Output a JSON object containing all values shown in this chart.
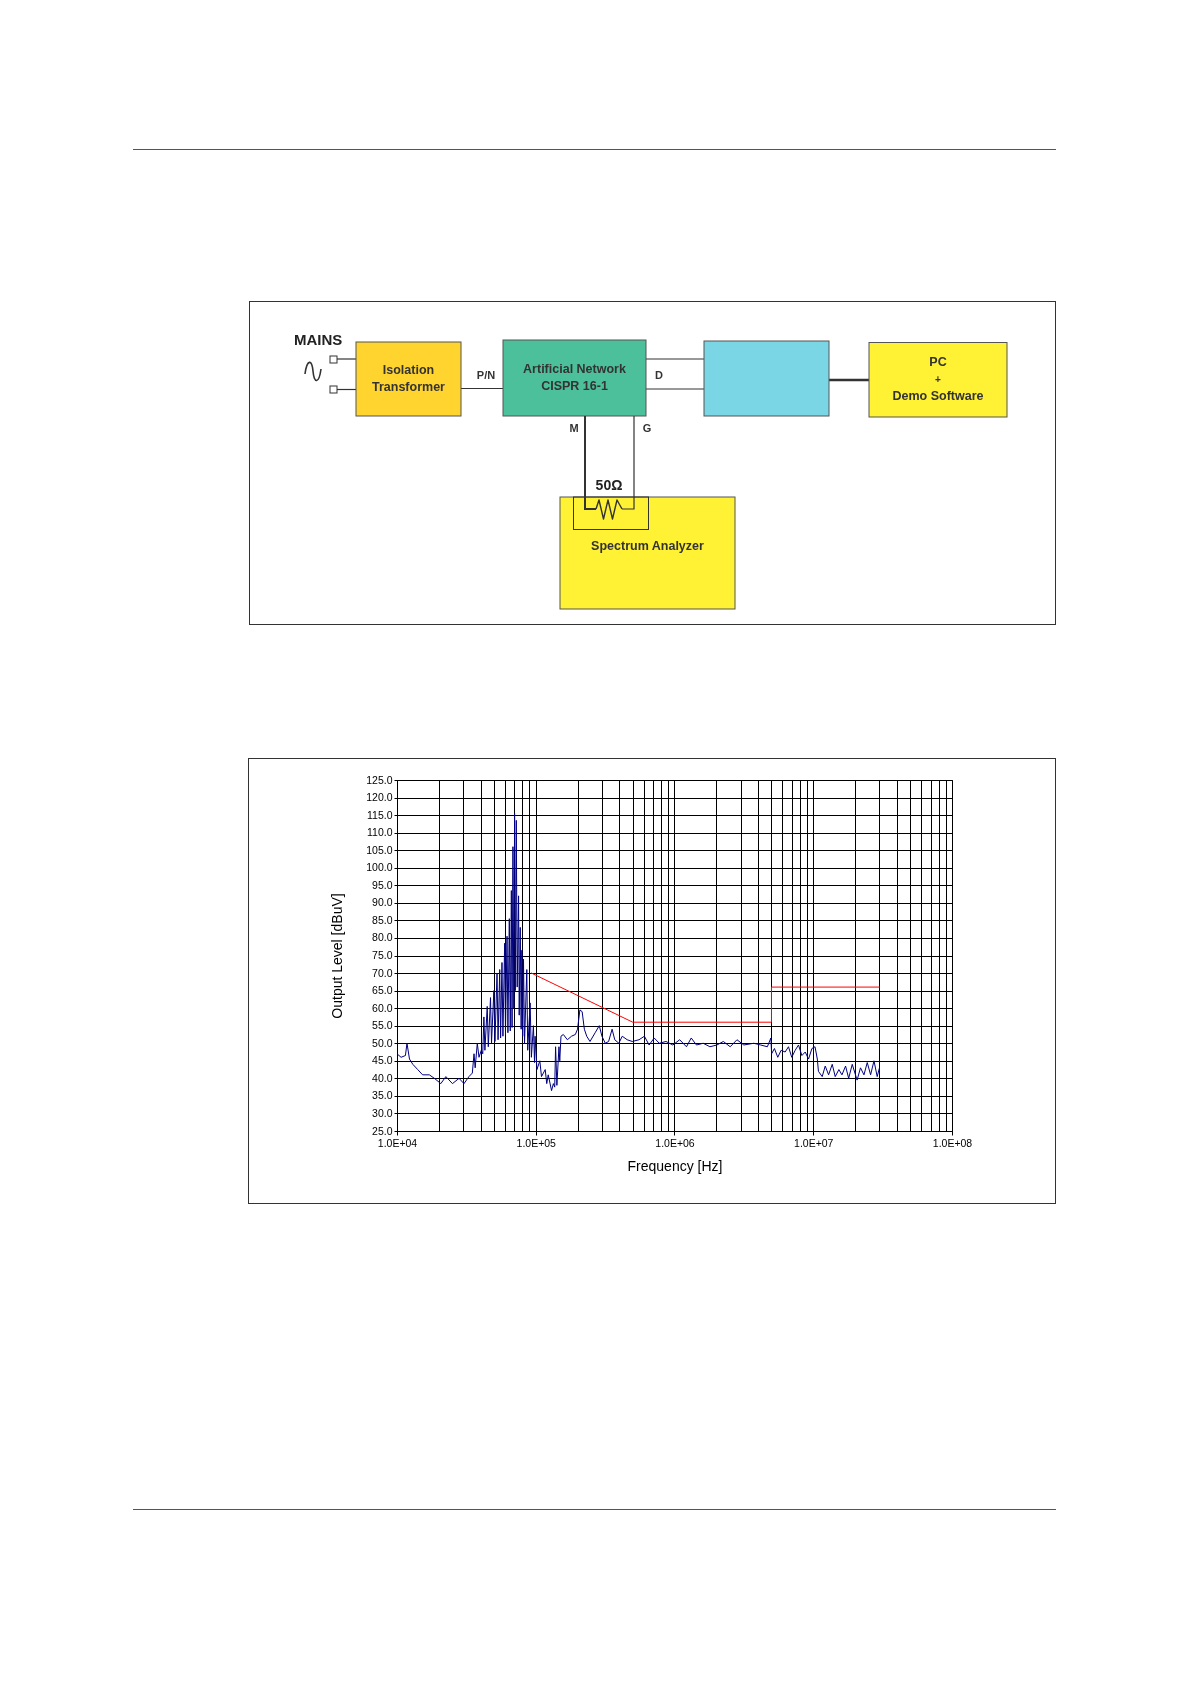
{
  "chart_data": [
    {
      "type": "other",
      "annotations": [
        "MAINS",
        "Isolation Transformer",
        "P/N",
        "Artificial Network CISPR 16-1",
        "D",
        "M",
        "G",
        "50Ω",
        "Spectrum Analyzer",
        "PC",
        "+",
        "Demo Software"
      ]
    },
    {
      "type": "line",
      "xlabel": "Frequency [Hz]",
      "ylabel": "Output Level [dBuV]",
      "log": "x",
      "xlim": [
        10000,
        100000000
      ],
      "xticks": [
        {
          "value": 10000,
          "label": "1.0E+04"
        },
        {
          "value": 20000,
          "label": null
        },
        {
          "value": 30000,
          "label": null
        },
        {
          "value": 40000,
          "label": null
        },
        {
          "value": 50000,
          "label": null
        },
        {
          "value": 60000,
          "label": null
        },
        {
          "value": 70000,
          "label": null
        },
        {
          "value": 80000,
          "label": null
        },
        {
          "value": 90000,
          "label": null
        },
        {
          "value": 100000,
          "label": "1.0E+05"
        },
        {
          "value": 200000,
          "label": null
        },
        {
          "value": 300000,
          "label": null
        },
        {
          "value": 400000,
          "label": null
        },
        {
          "value": 500000,
          "label": null
        },
        {
          "value": 600000,
          "label": null
        },
        {
          "value": 700000,
          "label": null
        },
        {
          "value": 800000,
          "label": null
        },
        {
          "value": 900000,
          "label": null
        },
        {
          "value": 1000000,
          "label": "1.0E+06"
        },
        {
          "value": 2000000,
          "label": null
        },
        {
          "value": 3000000,
          "label": null
        },
        {
          "value": 4000000,
          "label": null
        },
        {
          "value": 5000000,
          "label": null
        },
        {
          "value": 6000000,
          "label": null
        },
        {
          "value": 7000000,
          "label": null
        },
        {
          "value": 8000000,
          "label": null
        },
        {
          "value": 9000000,
          "label": null
        },
        {
          "value": 10000000,
          "label": "1.0E+07"
        },
        {
          "value": 20000000,
          "label": null
        },
        {
          "value": 30000000,
          "label": null
        },
        {
          "value": 40000000,
          "label": null
        },
        {
          "value": 50000000,
          "label": null
        },
        {
          "value": 60000000,
          "label": null
        },
        {
          "value": 70000000,
          "label": null
        },
        {
          "value": 80000000,
          "label": null
        },
        {
          "value": 90000000,
          "label": null
        },
        {
          "value": 100000000,
          "label": "1.0E+08"
        }
      ],
      "ylim": [
        25,
        125
      ],
      "yticks": [
        {
          "value": 25,
          "label": "25.0"
        },
        {
          "value": 30,
          "label": "30.0"
        },
        {
          "value": 35,
          "label": "35.0"
        },
        {
          "value": 40,
          "label": "40.0"
        },
        {
          "value": 45,
          "label": "45.0"
        },
        {
          "value": 50,
          "label": "50.0"
        },
        {
          "value": 55,
          "label": "55.0"
        },
        {
          "value": 60,
          "label": "60.0"
        },
        {
          "value": 65,
          "label": "65.0"
        },
        {
          "value": 70,
          "label": "70.0"
        },
        {
          "value": 75,
          "label": "75.0"
        },
        {
          "value": 80,
          "label": "80.0"
        },
        {
          "value": 85,
          "label": "85.0"
        },
        {
          "value": 90,
          "label": "90.0"
        },
        {
          "value": 95,
          "label": "95.0"
        },
        {
          "value": 100,
          "label": "100.0"
        },
        {
          "value": 105,
          "label": "105.0"
        },
        {
          "value": 110,
          "label": "110.0"
        },
        {
          "value": 115,
          "label": "115.0"
        },
        {
          "value": 120,
          "label": "120.0"
        },
        {
          "value": 125,
          "label": "125.0"
        }
      ],
      "grid": true,
      "series": [
        {
          "color": "#000080",
          "x": [
            10000,
            10700,
            11500,
            11800,
            12300,
            13000,
            14100,
            15300,
            17100,
            18600,
            20700,
            22500,
            25100,
            28000,
            30400,
            33000,
            34900,
            35900,
            36600,
            37900,
            39000,
            40500,
            41500,
            42300,
            43000,
            44700,
            45500,
            47200,
            48000,
            49900,
            50800,
            52600,
            53500,
            55000,
            55800,
            57100,
            58000,
            59700,
            60500,
            62100,
            63000,
            64500,
            65500,
            66700,
            67500,
            68500,
            69500,
            70400,
            71200,
            72400,
            73500,
            75200,
            76000,
            77300,
            78500,
            79400,
            80500,
            81600,
            83000,
            86200,
            87500,
            91100,
            93000,
            96200,
            98000,
            98900,
            102000,
            107000,
            110000,
            117000,
            120000,
            123000,
            130000,
            134000,
            137000,
            139000,
            142000,
            147000,
            149000,
            152000,
            158000,
            169000,
            181000,
            193000,
            200000,
            208000,
            216000,
            224000,
            233000,
            246000,
            268000,
            287000,
            300000,
            317000,
            335000,
            355000,
            371000,
            397000,
            420000,
            456000,
            496000,
            555000,
            607000,
            656000,
            714000,
            777000,
            869000,
            972000,
            1090000,
            1220000,
            1320000,
            1440000,
            1610000,
            1800000,
            2020000,
            2250000,
            2520000,
            2820000,
            3160000,
            3730000,
            4180000,
            4670000,
            4950000,
            5010000,
            5250000,
            5550000,
            5870000,
            6270000,
            6630000,
            7000000,
            7410000,
            7830000,
            8280000,
            8750000,
            9250000,
            9780000,
            10300000,
            10700000,
            10900000,
            11600000,
            12200000,
            12900000,
            13700000,
            14400000,
            15300000,
            16100000,
            17100000,
            18000000,
            19100000,
            20700000,
            21900000,
            23200000,
            24500000,
            25900000,
            27400000,
            28900000,
            30000000
          ],
          "values": [
            47,
            46,
            46.5,
            50,
            45.5,
            44,
            42.5,
            41,
            41,
            40,
            38.5,
            40.5,
            38.5,
            40,
            38.5,
            40.5,
            41.5,
            47,
            43,
            50,
            46,
            48,
            47,
            57.5,
            48,
            60.5,
            49,
            63,
            50,
            65,
            50.5,
            70,
            51,
            71,
            51.5,
            73,
            52,
            78.5,
            52.5,
            80.5,
            53,
            85.5,
            53.5,
            93.5,
            54.5,
            106,
            60,
            115.5,
            65,
            113.5,
            66,
            92,
            58,
            83,
            54,
            76.5,
            52,
            74,
            50,
            71,
            48,
            61.5,
            46,
            55,
            44.5,
            52,
            42.5,
            45,
            40.5,
            42.5,
            38.5,
            41,
            36.5,
            38.5,
            37.5,
            49,
            38,
            49,
            45,
            52,
            52.5,
            51,
            52,
            52.5,
            54,
            59.5,
            59,
            54,
            52,
            50.5,
            53,
            55,
            52,
            50,
            50.5,
            54,
            51,
            50,
            52,
            51,
            50.5,
            51,
            52,
            49.5,
            51.5,
            50,
            50.5,
            49.5,
            51,
            49,
            51.5,
            49.5,
            50,
            49,
            49.5,
            50.5,
            49,
            51,
            49.5,
            50,
            49.5,
            49,
            51.5,
            47,
            48.5,
            46,
            48,
            47.5,
            49,
            46,
            48,
            49.5,
            46.5,
            47.5,
            45.5,
            48.5,
            49,
            45.5,
            42,
            40.5,
            43.5,
            41,
            44,
            40.5,
            42.5,
            41,
            43.5,
            40,
            44,
            39.5,
            43,
            41,
            44.5,
            41,
            45,
            40.5,
            43
          ]
        },
        {
          "color": "#ff0000",
          "x": [
            93000,
            500000,
            5000000,
            5000000,
            30000000
          ],
          "values": [
            70,
            56,
            56,
            66,
            66
          ]
        }
      ]
    }
  ]
}
